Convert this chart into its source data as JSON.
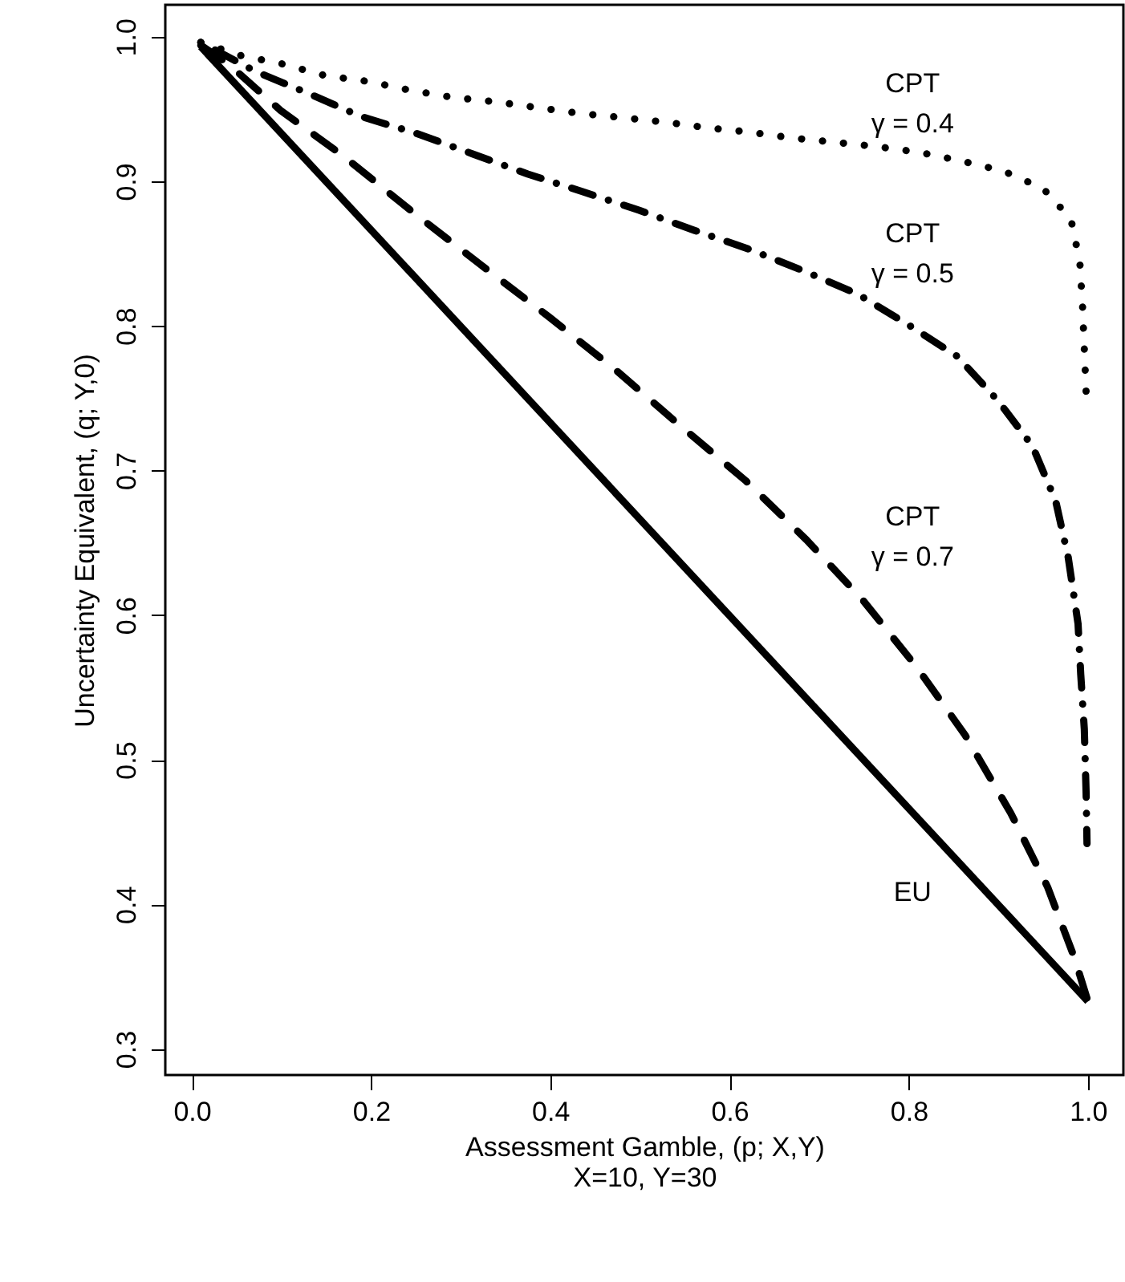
{
  "chart_data": {
    "type": "line",
    "xlabel": "Assessment Gamble, (p; X,Y)",
    "ylabel": "Uncertainty Equivalent, (q; Y,0)",
    "annotations": [
      "X=10, Y=30"
    ],
    "xlim": [
      -0.0296,
      1.0396
    ],
    "ylim": [
      0.282,
      1.022
    ],
    "xticks": [
      {
        "value": 0,
        "label": "0.0"
      },
      {
        "value": 0.2,
        "label": "0.2"
      },
      {
        "value": 0.4,
        "label": "0.4"
      },
      {
        "value": 0.6,
        "label": "0.6"
      },
      {
        "value": 0.8,
        "label": "0.8"
      },
      {
        "value": 1,
        "label": "1.0"
      }
    ],
    "yticks": [
      {
        "value": 0.3,
        "label": "0.3"
      },
      {
        "value": 0.4,
        "label": "0.4"
      },
      {
        "value": 0.5,
        "label": "0.5"
      },
      {
        "value": 0.6,
        "label": "0.6"
      },
      {
        "value": 0.7,
        "label": "0.7"
      },
      {
        "value": 0.8,
        "label": "0.8"
      },
      {
        "value": 0.9,
        "label": "0.9"
      },
      {
        "value": 1,
        "label": "1.0"
      }
    ],
    "series": [
      {
        "name": "EU",
        "color": "#000000",
        "line_style": "solid",
        "x": [
          0.01,
          1
        ],
        "values": [
          0.993,
          0.333
        ]
      },
      {
        "name": "CPT\nγ = 0.7",
        "color": "#000000",
        "line_style": "dashed",
        "x": [
          0.01,
          0.041,
          0.099,
          0.17,
          0.248,
          0.323,
          0.399,
          0.474,
          0.545,
          0.618,
          0.686,
          0.748,
          0.809,
          0.863,
          0.914,
          0.955,
          0.985,
          0.999
        ],
        "values": [
          0.994,
          0.981,
          0.949,
          0.917,
          0.878,
          0.842,
          0.806,
          0.769,
          0.731,
          0.693,
          0.652,
          0.611,
          0.564,
          0.517,
          0.463,
          0.412,
          0.363,
          0.335
        ]
      },
      {
        "name": "CPT\nγ = 0.5",
        "color": "#000000",
        "line_style": "dashdot",
        "x": [
          0.01,
          0.071,
          0.129,
          0.188,
          0.251,
          0.313,
          0.375,
          0.435,
          0.499,
          0.561,
          0.622,
          0.683,
          0.743,
          0.799,
          0.854,
          0.9,
          0.938,
          0.964,
          0.978,
          0.989,
          0.992,
          0.996,
          0.998,
          0.999
        ],
        "values": [
          0.996,
          0.976,
          0.961,
          0.945,
          0.933,
          0.919,
          0.905,
          0.893,
          0.88,
          0.866,
          0.853,
          0.838,
          0.822,
          0.801,
          0.779,
          0.748,
          0.717,
          0.679,
          0.64,
          0.594,
          0.559,
          0.521,
          0.477,
          0.442
        ]
      },
      {
        "name": "CPT\nγ = 0.4",
        "color": "#000000",
        "line_style": "dotted",
        "x": [
          0.01,
          0.054,
          0.102,
          0.149,
          0.197,
          0.243,
          0.291,
          0.338,
          0.385,
          0.432,
          0.48,
          0.527,
          0.575,
          0.622,
          0.669,
          0.717,
          0.764,
          0.812,
          0.859,
          0.906,
          0.95,
          0.981,
          0.991,
          0.994,
          0.996,
          0.998
        ],
        "values": [
          0.996,
          0.987,
          0.981,
          0.973,
          0.969,
          0.963,
          0.958,
          0.955,
          0.951,
          0.947,
          0.944,
          0.941,
          0.937,
          0.934,
          0.93,
          0.927,
          0.924,
          0.92,
          0.914,
          0.907,
          0.895,
          0.874,
          0.844,
          0.814,
          0.784,
          0.754
        ]
      }
    ]
  }
}
